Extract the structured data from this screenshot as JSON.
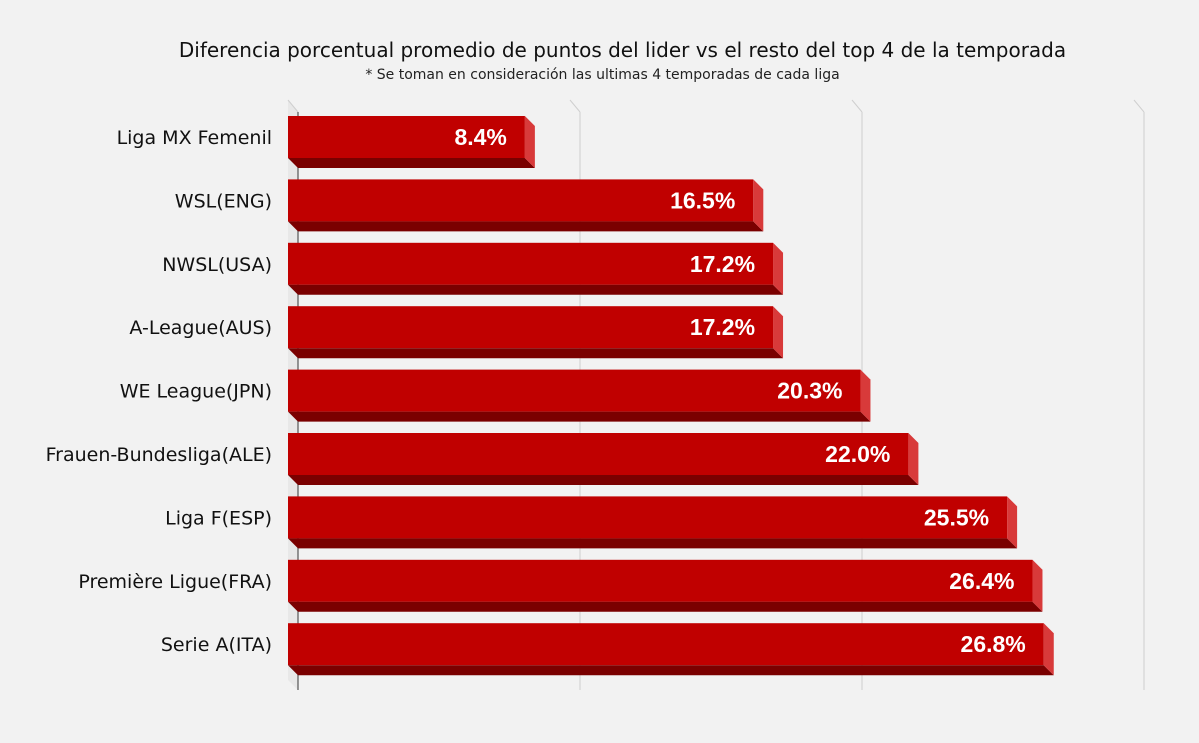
{
  "chart_data": {
    "type": "bar",
    "orientation": "horizontal",
    "title": "Diferencia porcentual promedio de puntos del lider vs el resto del top 4 de la temporada",
    "subtitle": "* Se toman en consideración las ultimas 4 temporadas de cada liga",
    "categories": [
      "Liga MX Femenil",
      "WSL(ENG)",
      "NWSL(USA)",
      "A-League(AUS)",
      "WE League(JPN)",
      "Frauen-Bundesliga(ALE)",
      "Liga F(ESP)",
      "Première Ligue(FRA)",
      "Serie A(ITA)"
    ],
    "values": [
      8.4,
      16.5,
      17.2,
      17.2,
      20.3,
      22.0,
      25.5,
      26.4,
      26.8
    ],
    "value_labels": [
      "8.4%",
      "16.5%",
      "17.2%",
      "17.2%",
      "20.3%",
      "22.0%",
      "25.5%",
      "26.4%",
      "26.8%"
    ],
    "xlim": [
      0,
      30
    ],
    "grid": true,
    "legend": "none",
    "colors": {
      "bar": "#c00000",
      "bar_dark": "#7a0000",
      "bar_side": "#d83a3a",
      "grid": "#cfcfcf"
    }
  }
}
